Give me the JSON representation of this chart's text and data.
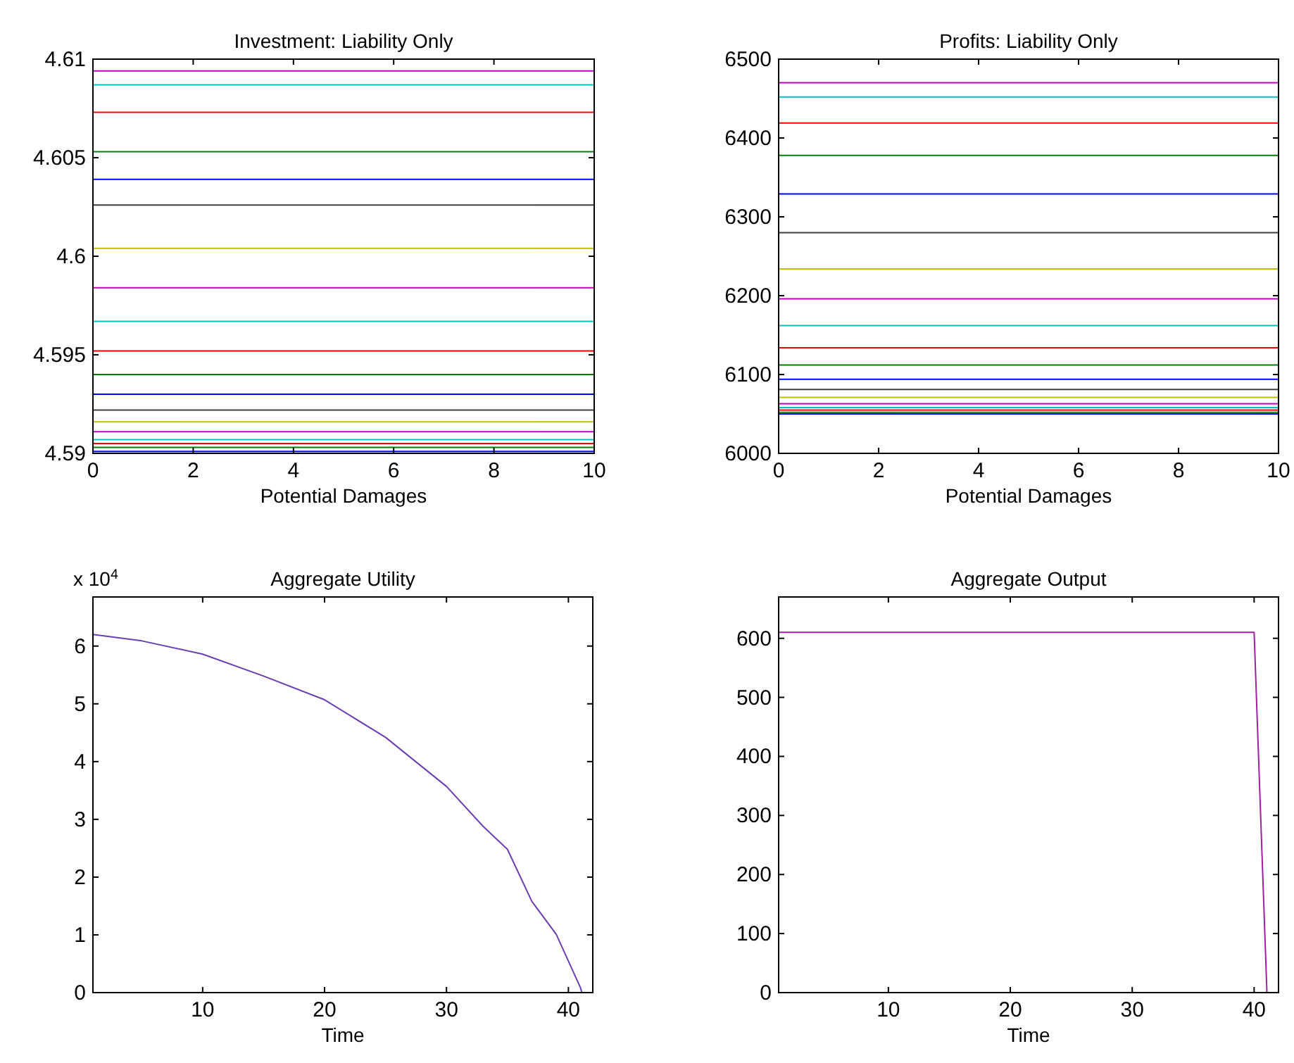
{
  "chart_data": [
    {
      "type": "line",
      "title": "Investment: Liability Only",
      "xlabel": "Potential Damages",
      "x": [
        0,
        10
      ],
      "xlim": [
        0,
        10
      ],
      "xticks": [
        0,
        2,
        4,
        6,
        8,
        10
      ],
      "ylim": [
        4.59,
        4.61
      ],
      "yticks": [
        4.59,
        4.595,
        4.6,
        4.605,
        4.61
      ],
      "grid": false,
      "marker": "none",
      "series": [
        {
          "color": "#0000ff",
          "values": [
            4.5901,
            4.5901
          ]
        },
        {
          "color": "#008000",
          "values": [
            4.5903,
            4.5903
          ]
        },
        {
          "color": "#ff0000",
          "values": [
            4.5905,
            4.5905
          ]
        },
        {
          "color": "#00bfbf",
          "values": [
            4.5907,
            4.5907
          ]
        },
        {
          "color": "#bf00bf",
          "values": [
            4.5911,
            4.5911
          ]
        },
        {
          "color": "#bfbf00",
          "values": [
            4.5916,
            4.5916
          ]
        },
        {
          "color": "#404040",
          "values": [
            4.5922,
            4.5922
          ]
        },
        {
          "color": "#0000ff",
          "values": [
            4.593,
            4.593
          ]
        },
        {
          "color": "#008000",
          "values": [
            4.594,
            4.594
          ]
        },
        {
          "color": "#ff0000",
          "values": [
            4.5952,
            4.5952
          ]
        },
        {
          "color": "#00bfbf",
          "values": [
            4.5967,
            4.5967
          ]
        },
        {
          "color": "#bf00bf",
          "values": [
            4.5984,
            4.5984
          ]
        },
        {
          "color": "#bfbf00",
          "values": [
            4.6004,
            4.6004
          ]
        },
        {
          "color": "#404040",
          "values": [
            4.6026,
            4.6026
          ]
        },
        {
          "color": "#0000ff",
          "values": [
            4.6039,
            4.6039
          ]
        },
        {
          "color": "#008000",
          "values": [
            4.6053,
            4.6053
          ]
        },
        {
          "color": "#ff0000",
          "values": [
            4.6073,
            4.6073
          ]
        },
        {
          "color": "#00bfbf",
          "values": [
            4.6087,
            4.6087
          ]
        },
        {
          "color": "#bf00bf",
          "values": [
            4.6094,
            4.6094
          ]
        }
      ]
    },
    {
      "type": "line",
      "title": "Profits: Liability Only",
      "xlabel": "Potential Damages",
      "x": [
        0,
        10
      ],
      "xlim": [
        0,
        10
      ],
      "xticks": [
        0,
        2,
        4,
        6,
        8,
        10
      ],
      "ylim": [
        6000,
        6500
      ],
      "yticks": [
        6000,
        6100,
        6200,
        6300,
        6400,
        6500
      ],
      "grid": false,
      "marker": "none",
      "series": [
        {
          "color": "#0000ff",
          "values": [
            6050,
            6050
          ]
        },
        {
          "color": "#008000",
          "values": [
            6052,
            6052
          ]
        },
        {
          "color": "#ff0000",
          "values": [
            6055,
            6055
          ]
        },
        {
          "color": "#00bfbf",
          "values": [
            6058,
            6058
          ]
        },
        {
          "color": "#bf00bf",
          "values": [
            6063,
            6063
          ]
        },
        {
          "color": "#bfbf00",
          "values": [
            6071,
            6071
          ]
        },
        {
          "color": "#404040",
          "values": [
            6081,
            6081
          ]
        },
        {
          "color": "#0000ff",
          "values": [
            6094,
            6094
          ]
        },
        {
          "color": "#008000",
          "values": [
            6112,
            6112
          ]
        },
        {
          "color": "#ff0000",
          "values": [
            6134,
            6134
          ]
        },
        {
          "color": "#00bfbf",
          "values": [
            6162,
            6162
          ]
        },
        {
          "color": "#bf00bf",
          "values": [
            6196,
            6196
          ]
        },
        {
          "color": "#bfbf00",
          "values": [
            6234,
            6234
          ]
        },
        {
          "color": "#404040",
          "values": [
            6280,
            6280
          ]
        },
        {
          "color": "#0000ff",
          "values": [
            6329,
            6329
          ]
        },
        {
          "color": "#008000",
          "values": [
            6378,
            6378
          ]
        },
        {
          "color": "#ff0000",
          "values": [
            6419,
            6419
          ]
        },
        {
          "color": "#00bfbf",
          "values": [
            6452,
            6452
          ]
        },
        {
          "color": "#bf00bf",
          "values": [
            6470,
            6470
          ]
        }
      ]
    },
    {
      "type": "line",
      "title": "Aggregate Utility",
      "xlabel": "Time",
      "annotations": [
        "x 10$^{4}$"
      ],
      "x": [
        1,
        5,
        10,
        15,
        20,
        25,
        30,
        33,
        35,
        37,
        39,
        41,
        41.1
      ],
      "xlim": [
        1,
        42
      ],
      "xticks": [
        10,
        20,
        30,
        40
      ],
      "ylim": [
        0,
        6.85
      ],
      "yticks": [
        0,
        1,
        2,
        3,
        4,
        5,
        6
      ],
      "grid": false,
      "marker": "none",
      "series": [
        {
          "color": "#6a3fb0",
          "values": [
            6.2,
            6.09,
            5.86,
            5.48,
            5.07,
            4.42,
            3.57,
            2.88,
            2.48,
            1.58,
            1.01,
            0.08,
            0
          ]
        }
      ]
    },
    {
      "type": "line",
      "title": "Aggregate Output",
      "xlabel": "Time",
      "x": [
        1,
        40,
        41.05
      ],
      "xlim": [
        1,
        42
      ],
      "xticks": [
        10,
        20,
        30,
        40
      ],
      "ylim": [
        0,
        670
      ],
      "yticks": [
        0,
        100,
        200,
        300,
        400,
        500,
        600
      ],
      "grid": false,
      "marker": "none",
      "series": [
        {
          "color": "#a020a0",
          "values": [
            610,
            610,
            0
          ]
        }
      ]
    }
  ]
}
